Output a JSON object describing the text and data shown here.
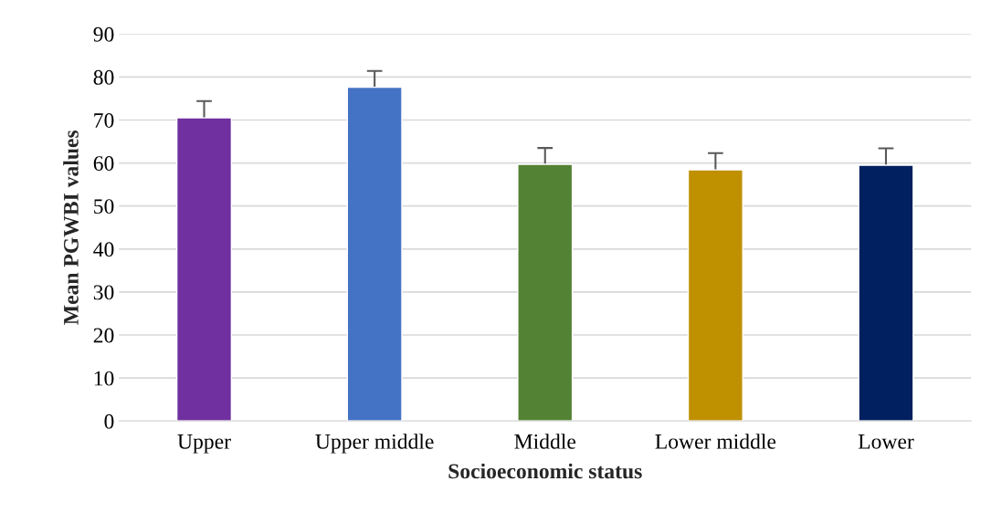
{
  "chart_data": {
    "type": "bar",
    "xlabel": "Socioeconomic status",
    "ylabel": "Mean PGWBI values",
    "categories": [
      "Upper",
      "Upper middle",
      "Middle",
      "Lower middle",
      "Lower"
    ],
    "values": [
      70.5,
      77.6,
      59.7,
      58.4,
      59.5
    ],
    "colors": [
      "#7030a0",
      "#4472c4",
      "#548235",
      "#bf9000",
      "#002060"
    ],
    "errors": [
      3.9,
      3.8,
      3.8,
      3.9,
      3.9
    ],
    "ylim": [
      0,
      90
    ],
    "yticks": [
      0,
      10,
      20,
      30,
      40,
      50,
      60,
      70,
      80,
      90
    ],
    "grid": "y"
  }
}
